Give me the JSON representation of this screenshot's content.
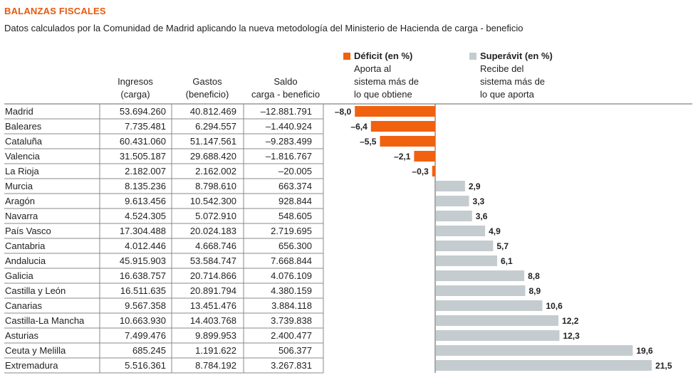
{
  "title": "BALANZAS FISCALES",
  "subtitle": "Datos calculados por la Comunidad de Madrid aplicando la nueva metodología del Ministerio de Hacienda de carga - beneficio",
  "columns": {
    "ingresos": [
      "Ingresos",
      "(carga)"
    ],
    "gastos": [
      "Gastos",
      "(beneficio)"
    ],
    "saldo": [
      "Saldo",
      "carga - beneficio"
    ]
  },
  "legend": {
    "deficit": {
      "label": "Déficit (en %)",
      "desc": [
        "Aporta al",
        "sistema más de",
        "lo que obtiene"
      ],
      "color": "#f0620f"
    },
    "superavit": {
      "label": "Superávit (en %)",
      "desc": [
        "Recibe del",
        "sistema más de",
        "lo que aporta"
      ],
      "color": "#c5ccd0"
    }
  },
  "chart_data": {
    "type": "bar",
    "title": "BALANZAS FISCALES",
    "xlabel": "",
    "ylabel": "",
    "ylim": [
      -8,
      21.5
    ],
    "categories": [
      "Madrid",
      "Baleares",
      "Cataluña",
      "Valencia",
      "La Rioja",
      "Murcia",
      "Aragón",
      "Navarra",
      "País Vasco",
      "Cantabria",
      "Andalucia",
      "Galicia",
      "Castilla y León",
      "Canarias",
      "Castilla-La Mancha",
      "Asturias",
      "Ceuta y Melilla",
      "Extremadura"
    ],
    "ingresos": [
      "53.694.260",
      "7.735.481",
      "60.431.060",
      "31.505.187",
      "2.182.007",
      "8.135.236",
      "9.613.456",
      "4.524.305",
      "17.304.488",
      "4.012.446",
      "45.915.903",
      "16.638.757",
      "16.511.635",
      "9.567.358",
      "10.663.930",
      "7.499.476",
      "685.245",
      "5.516.361"
    ],
    "gastos": [
      "40.812.469",
      "6.294.557",
      "51.147.561",
      "29.688.420",
      "2.162.002",
      "8.798.610",
      "10.542.300",
      "5.072.910",
      "20.024.183",
      "4.668.746",
      "53.584.747",
      "20.714.866",
      "20.891.794",
      "13.451.476",
      "14.403.768",
      "9.899.953",
      "1.191.622",
      "8.784.192"
    ],
    "saldo": [
      "–12.881.791",
      "–1.440.924",
      "–9.283.499",
      "–1.816.767",
      "–20.005",
      "663.374",
      "928.844",
      "548.605",
      "2.719.695",
      "656.300",
      "7.668.844",
      "4.076.109",
      "4.380.159",
      "3.884.118",
      "3.739.838",
      "2.400.477",
      "506.377",
      "3.267.831"
    ],
    "values": [
      -8.0,
      -6.4,
      -5.5,
      -2.1,
      -0.3,
      2.9,
      3.3,
      3.6,
      4.9,
      5.7,
      6.1,
      8.8,
      8.9,
      10.6,
      12.2,
      12.3,
      19.6,
      21.5
    ],
    "labels": [
      "–8,0",
      "–6,4",
      "–5,5",
      "–2,1",
      "–0,3",
      "2,9",
      "3,3",
      "3,6",
      "4,9",
      "5,7",
      "6,1",
      "8,8",
      "8,9",
      "10,6",
      "12,2",
      "12,3",
      "19,6",
      "21,5"
    ]
  }
}
